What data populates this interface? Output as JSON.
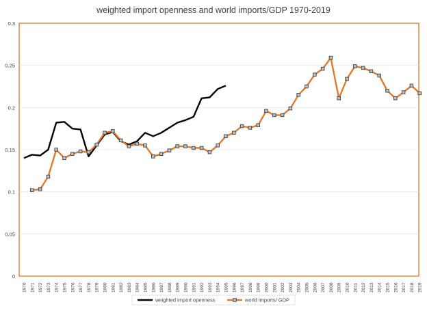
{
  "chart_data": {
    "type": "line",
    "title": "weighted import openness and world imports/GDP 1970-2019",
    "xlabel": "",
    "ylabel": "",
    "ylim": [
      0,
      0.3
    ],
    "yticks": [
      "0",
      "0.05",
      "0.1",
      "0.15",
      "0.2",
      "0.25",
      "0.3"
    ],
    "grid": "horizontal",
    "legend": "bottom",
    "categories": [
      "1970",
      "1971",
      "1972",
      "1973",
      "1974",
      "1975",
      "1976",
      "1977",
      "1978",
      "1979",
      "1980",
      "1981",
      "1982",
      "1983",
      "1984",
      "1985",
      "1986",
      "1987",
      "1988",
      "1989",
      "1990",
      "1991",
      "1992",
      "1993",
      "1994",
      "1995",
      "1996",
      "1997",
      "1998",
      "1999",
      "2000",
      "2001",
      "2002",
      "2003",
      "2004",
      "2005",
      "2006",
      "2007",
      "2008",
      "2009",
      "2010",
      "2011",
      "2012",
      "2013",
      "2014",
      "2015",
      "2016",
      "2017",
      "2018",
      "2019"
    ],
    "series": [
      {
        "name": "weighted import openness",
        "color": "#000000",
        "marker": "none",
        "values": [
          0.14,
          0.144,
          0.143,
          0.15,
          0.182,
          0.183,
          0.175,
          0.174,
          0.142,
          0.155,
          0.168,
          0.171,
          0.16,
          0.156,
          0.16,
          0.17,
          0.166,
          0.17,
          0.176,
          0.182,
          0.185,
          0.189,
          0.211,
          0.212,
          0.222,
          0.226,
          null,
          null,
          null,
          null,
          null,
          null,
          null,
          null,
          null,
          null,
          null,
          null,
          null,
          null,
          null,
          null,
          null,
          null,
          null,
          null,
          null,
          null,
          null,
          null
        ]
      },
      {
        "name": "world imports/ GDP",
        "color": "#E07A2F",
        "marker": "square",
        "values": [
          null,
          0.102,
          0.103,
          0.118,
          0.15,
          0.14,
          0.145,
          0.148,
          0.147,
          0.156,
          0.17,
          0.172,
          0.161,
          0.154,
          0.157,
          0.155,
          0.142,
          0.145,
          0.149,
          0.154,
          0.154,
          0.152,
          0.152,
          0.147,
          0.155,
          0.166,
          0.17,
          0.178,
          0.176,
          0.179,
          0.196,
          0.191,
          0.191,
          0.199,
          0.215,
          0.225,
          0.239,
          0.246,
          0.259,
          0.211,
          0.234,
          0.249,
          0.247,
          0.243,
          0.238,
          0.22,
          0.211,
          0.218,
          0.226,
          0.217
        ]
      }
    ]
  }
}
